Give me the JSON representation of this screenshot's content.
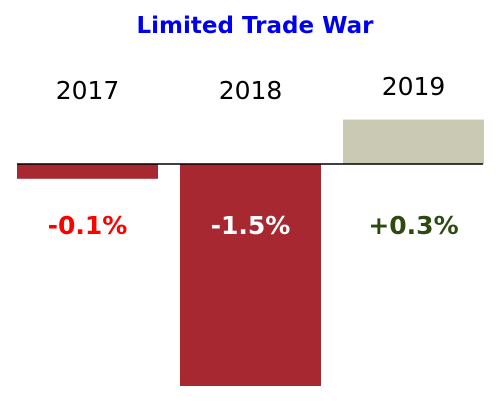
{
  "chart_data": {
    "type": "bar",
    "title": "Limited Trade War",
    "categories": [
      "2017",
      "2018",
      "2019"
    ],
    "values": [
      -0.1,
      -1.5,
      0.3
    ],
    "data_labels": [
      "-0.1%",
      "-1.5%",
      "+0.3%"
    ],
    "xlabel": "",
    "ylabel": "",
    "ylim": [
      -1.5,
      0.3
    ],
    "grid": false,
    "legend": "none",
    "colors": {
      "title": "#0000ee",
      "negative_bar": "#a82832",
      "positive_bar": "#c9c9b4",
      "baseline": "#000000",
      "label_2017": "#ff0000",
      "label_2018": "#ffffff",
      "label_2019": "#2e4a10"
    }
  }
}
